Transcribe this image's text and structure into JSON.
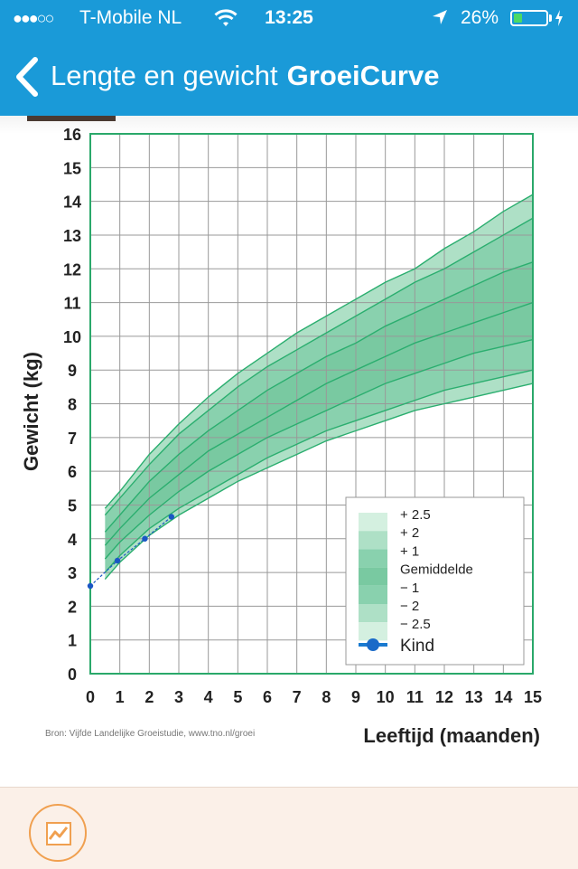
{
  "status": {
    "signal": "●●●○○",
    "carrier": "T-Mobile NL",
    "time": "13:25",
    "battery": "26%",
    "battery_level": 0.26
  },
  "nav": {
    "back_icon": "chevron-left-icon",
    "title_regular": "Lengte en gewicht",
    "title_bold": "GroeiCurve"
  },
  "source_note": "Bron: Vijfde Landelijke Groeistudie, www.tno.nl/groei",
  "bottom_tab": {
    "icon": "growth-chart-icon"
  },
  "colors": {
    "accent": "#1a9ad8",
    "band_outer": "#d4f0e0",
    "band_2": "#aee0c6",
    "band_1": "#89d1ae",
    "band_mid": "#79c9a1",
    "curve": "#2bae6f",
    "kind": "#1a56c4",
    "tab_accent": "#f0a050"
  },
  "chart_data": {
    "type": "line",
    "xlabel": "Leeftijd (maanden)",
    "ylabel": "Gewicht (kg)",
    "xlim": [
      0,
      15
    ],
    "ylim": [
      0,
      16
    ],
    "xticks": [
      0,
      1,
      2,
      3,
      4,
      5,
      6,
      7,
      8,
      9,
      10,
      11,
      12,
      13,
      14,
      15
    ],
    "yticks": [
      0,
      1,
      2,
      3,
      4,
      5,
      6,
      7,
      8,
      9,
      10,
      11,
      12,
      13,
      14,
      15,
      16
    ],
    "grid": true,
    "x": [
      0.5,
      1,
      2,
      3,
      4,
      5,
      6,
      7,
      8,
      9,
      10,
      11,
      12,
      13,
      14,
      15
    ],
    "series": [
      {
        "name": "+ 2.5",
        "values": [
          4.9,
          5.4,
          6.5,
          7.4,
          8.2,
          8.9,
          9.5,
          10.1,
          10.6,
          11.1,
          11.6,
          12.0,
          12.6,
          13.1,
          13.7,
          14.2
        ]
      },
      {
        "name": "+ 2",
        "values": [
          4.7,
          5.2,
          6.2,
          7.1,
          7.8,
          8.5,
          9.1,
          9.6,
          10.1,
          10.6,
          11.1,
          11.6,
          12.0,
          12.5,
          13.0,
          13.5
        ]
      },
      {
        "name": "+ 1",
        "values": [
          4.2,
          4.7,
          5.7,
          6.5,
          7.2,
          7.8,
          8.4,
          8.9,
          9.4,
          9.8,
          10.3,
          10.7,
          11.1,
          11.5,
          11.9,
          12.2
        ]
      },
      {
        "name": "Gemiddelde",
        "values": [
          3.8,
          4.3,
          5.2,
          5.9,
          6.6,
          7.1,
          7.6,
          8.1,
          8.6,
          9.0,
          9.4,
          9.8,
          10.1,
          10.4,
          10.7,
          11.0
        ]
      },
      {
        "name": "− 1",
        "values": [
          3.4,
          3.9,
          4.7,
          5.4,
          6.0,
          6.5,
          7.0,
          7.4,
          7.8,
          8.2,
          8.6,
          8.9,
          9.2,
          9.5,
          9.7,
          9.9
        ]
      },
      {
        "name": "− 2",
        "values": [
          3.0,
          3.5,
          4.3,
          4.9,
          5.4,
          5.9,
          6.4,
          6.8,
          7.2,
          7.5,
          7.8,
          8.1,
          8.4,
          8.6,
          8.8,
          9.0
        ]
      },
      {
        "name": "− 2.5",
        "values": [
          2.8,
          3.3,
          4.1,
          4.7,
          5.2,
          5.7,
          6.1,
          6.5,
          6.9,
          7.2,
          7.5,
          7.8,
          8.0,
          8.2,
          8.4,
          8.6
        ]
      }
    ],
    "kind": {
      "name": "Kind",
      "x": [
        0,
        0.92,
        1.85,
        2.75
      ],
      "values": [
        2.6,
        3.35,
        4.0,
        4.65
      ]
    },
    "legend_position": "bottom-right"
  }
}
